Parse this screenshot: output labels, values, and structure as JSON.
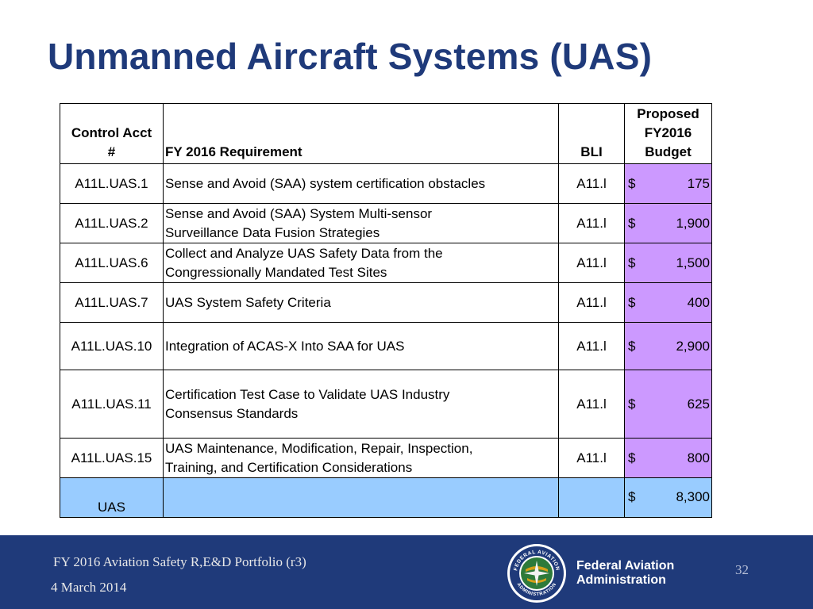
{
  "slide": {
    "title": "Unmanned Aircraft Systems (UAS)"
  },
  "table": {
    "headers": {
      "acct_line1": "Control Acct",
      "acct_line2": "#",
      "requirement": "FY 2016 Requirement",
      "bli": "BLI",
      "budget_line1": "Proposed",
      "budget_line2": "FY2016",
      "budget_line3": "Budget"
    },
    "rows": [
      {
        "acct": "A11L.UAS.1",
        "req_line1": "Sense and Avoid (SAA) system certification obstacles",
        "req_line2": "",
        "bli": "A11.l",
        "currency": "$",
        "amount": "175"
      },
      {
        "acct": "A11L.UAS.2",
        "req_line1": "Sense and Avoid (SAA) System Multi-sensor",
        "req_line2": "Surveillance Data Fusion Strategies",
        "bli": "A11.l",
        "currency": "$",
        "amount": "1,900"
      },
      {
        "acct": "A11L.UAS.6",
        "req_line1": "Collect and Analyze UAS Safety Data from the",
        "req_line2": "Congressionally Mandated Test Sites",
        "bli": "A11.l",
        "currency": "$",
        "amount": "1,500"
      },
      {
        "acct": "A11L.UAS.7",
        "req_line1": "UAS System Safety Criteria",
        "req_line2": "",
        "bli": "A11.l",
        "currency": "$",
        "amount": "400"
      },
      {
        "acct": "A11L.UAS.10",
        "req_line1": "Integration of ACAS-X Into SAA for UAS",
        "req_line2": "",
        "bli": "A11.l",
        "currency": "$",
        "amount": "2,900"
      },
      {
        "acct": "A11L.UAS.11",
        "req_line1": "Certification Test Case to Validate UAS Industry",
        "req_line2": "Consensus Standards",
        "bli": "A11.l",
        "currency": "$",
        "amount": "625"
      },
      {
        "acct": "A11L.UAS.15",
        "req_line1": "UAS Maintenance, Modification, Repair, Inspection,",
        "req_line2": "Training, and Certification Considerations",
        "bli": "A11.l",
        "currency": "$",
        "amount": "800"
      }
    ],
    "total": {
      "label": "UAS",
      "currency": "$",
      "amount": "8,300"
    }
  },
  "footer": {
    "portfolio": "FY 2016 Aviation Safety R,E&D Portfolio (r3)",
    "date": "4 March 2014",
    "agency_line1": "Federal Aviation",
    "agency_line2": "Administration",
    "page_number": "32",
    "seal_text_top": "FEDERAL AVIATION",
    "seal_text_bottom": "ADMINISTRATION",
    "seal_icon": "faa-seal-icon"
  },
  "colors": {
    "title": "#1f3a7a",
    "footer_bg": "#1f3a7a",
    "budget_column": "#cc99ff",
    "total_row": "#99ccff"
  }
}
